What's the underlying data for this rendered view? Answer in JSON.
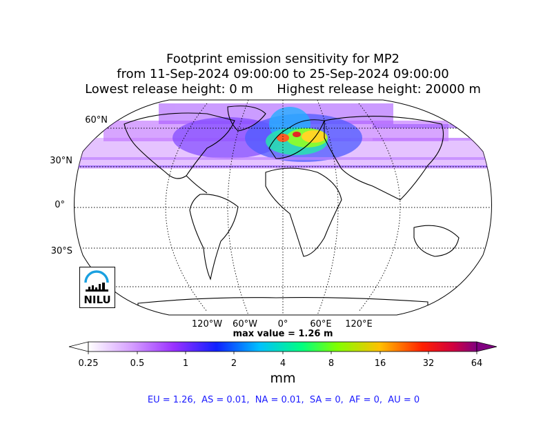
{
  "title": {
    "line1": "Footprint emission sensitivity for MP2",
    "line2": "from 11-Sep-2024 09:00:00 to 25-Sep-2024 09:00:00",
    "line3": "Lowest release height: 0 m      Highest release height: 20000 m"
  },
  "map": {
    "projection": "Robinson",
    "lat_labels": [
      "60°N",
      "30°N",
      "0°",
      "30°S"
    ],
    "lon_labels": [
      "120°W",
      "60°W",
      "0°",
      "60°E",
      "120°E"
    ],
    "max_value": "max value = 1.26 m",
    "logo_text": "NILU"
  },
  "colorbar": {
    "ticks": [
      "0.25",
      "0.5",
      "1",
      "2",
      "4",
      "8",
      "16",
      "32",
      "64"
    ],
    "units": "mm",
    "colors": [
      "#ffffff",
      "#b040ff",
      "#2000ff",
      "#00b0ff",
      "#00ff80",
      "#80ff00",
      "#ffd000",
      "#ff4000",
      "#e00000",
      "#800080"
    ]
  },
  "region_stats": "EU = 1.26,  AS = 0.01,  NA = 0.01,  SA = 0,  AF = 0,  AU = 0"
}
